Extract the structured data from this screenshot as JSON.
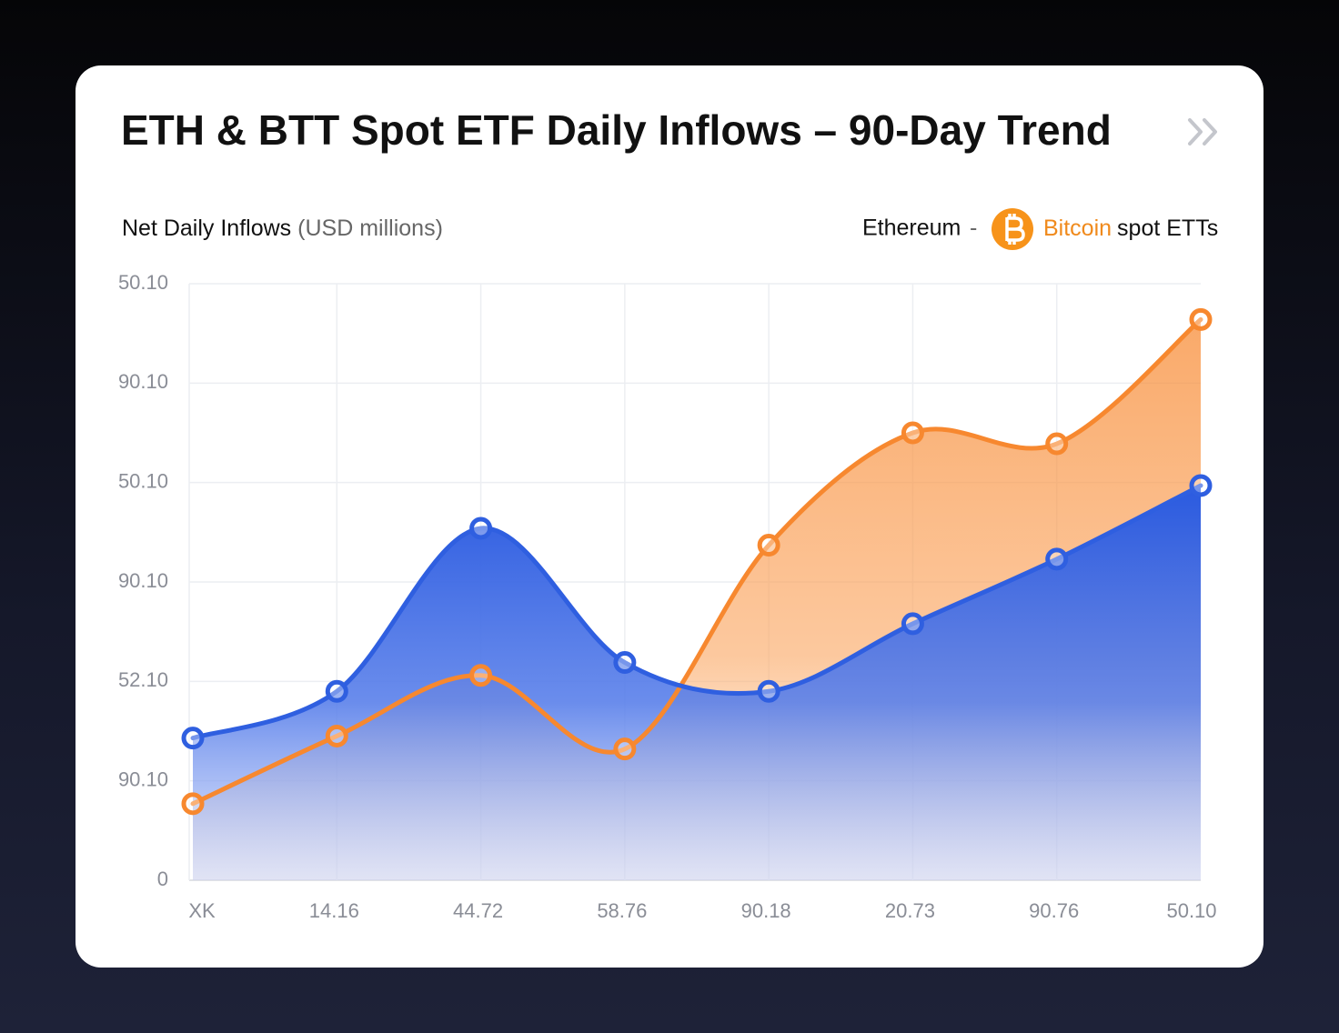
{
  "chart_data": {
    "type": "area",
    "title": "ETH & BTT Spot ETF Daily Inflows – 90-Day Trend",
    "y_label": "Net Daily Inflows",
    "y_label_unit": "(USD millions)",
    "legend_separator": "-",
    "legend_suffix": "spot ETTs",
    "categories": [
      "XK",
      "14.16",
      "44.72",
      "58.76",
      "90.18",
      "20.73",
      "90.76",
      "50.10"
    ],
    "ylim": [
      0,
      6
    ],
    "yticks": [
      {
        "value": 0,
        "label": "0"
      },
      {
        "value": 1,
        "label": "90.10"
      },
      {
        "value": 2,
        "label": "52.10"
      },
      {
        "value": 3,
        "label": "90.10"
      },
      {
        "value": 4,
        "label": "50.10"
      },
      {
        "value": 5,
        "label": "90.10"
      },
      {
        "value": 6,
        "label": "50.10"
      }
    ],
    "grid": true,
    "series": [
      {
        "name": "Ethereum",
        "color": "#2f5fe0",
        "values": [
          1.43,
          1.9,
          3.54,
          2.19,
          1.9,
          2.58,
          3.23,
          3.97
        ]
      },
      {
        "name": "Bitcoin",
        "color": "#f7882f",
        "values": [
          0.77,
          1.45,
          2.06,
          1.32,
          3.37,
          4.5,
          4.39,
          5.64
        ]
      }
    ]
  }
}
